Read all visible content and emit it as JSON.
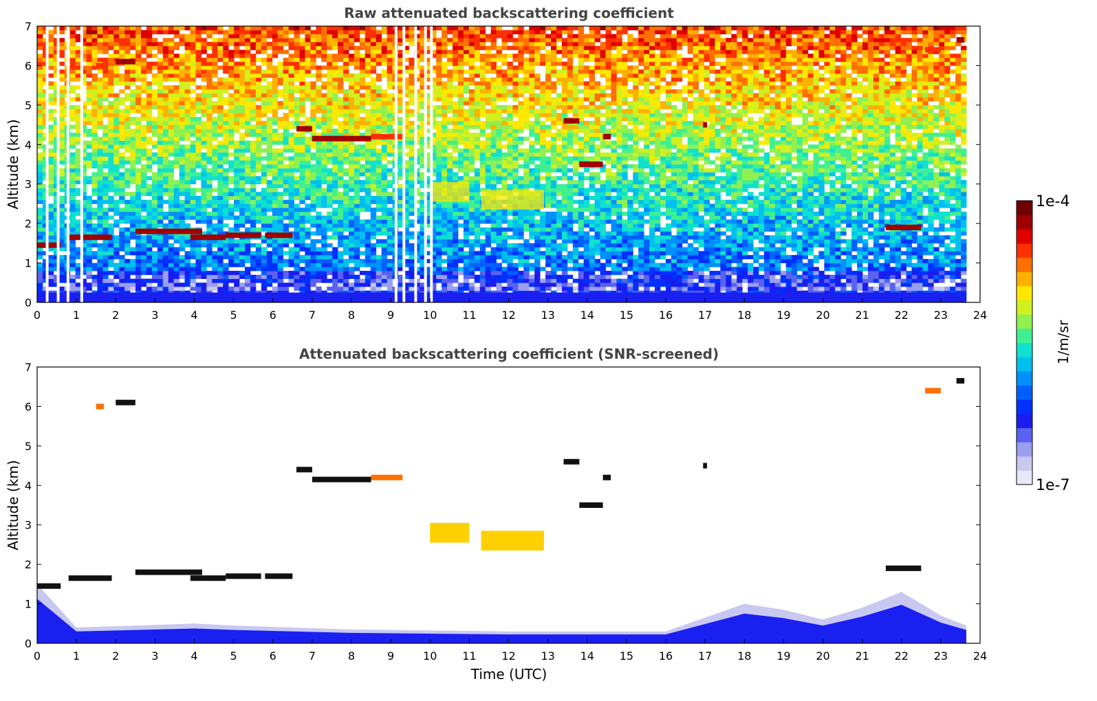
{
  "colorbar": {
    "label": "1/m/sr",
    "max_label": "1e-4",
    "min_label": "1e-7",
    "range": [
      1e-07,
      0.0001
    ],
    "scale": "log",
    "colormap": [
      "#e8e8f8",
      "#c8c8f0",
      "#9a9ef0",
      "#5a62f0",
      "#1a1cf0",
      "#0030ff",
      "#0060ff",
      "#0090ff",
      "#00c0f0",
      "#10e0d0",
      "#40f090",
      "#90f050",
      "#d0f020",
      "#ffe800",
      "#ffb000",
      "#ff7000",
      "#ff3000",
      "#e00000",
      "#a00000",
      "#700000"
    ]
  },
  "chart_data": [
    {
      "type": "heatmap",
      "title": "Raw attenuated backscattering coefficient",
      "xlabel": "",
      "ylabel": "Altitude (km)",
      "xlim": [
        0,
        24
      ],
      "ylim": [
        0,
        7
      ],
      "xticks": [
        "0",
        "1",
        "2",
        "3",
        "4",
        "5",
        "6",
        "7",
        "8",
        "9",
        "10",
        "11",
        "12",
        "13",
        "14",
        "15",
        "16",
        "17",
        "18",
        "19",
        "20",
        "21",
        "22",
        "23",
        "24"
      ],
      "yticks": [
        "0",
        "1",
        "2",
        "3",
        "4",
        "5",
        "6",
        "7"
      ],
      "data_end_hour": 23.65,
      "background_noise": "altitude-increasing (blue near ground to yellow/red aloft)",
      "cloud_layers": [
        {
          "t_start": 0.0,
          "t_end": 0.6,
          "altitude": 1.45,
          "intensity": "high"
        },
        {
          "t_start": 0.8,
          "t_end": 1.9,
          "altitude": 1.65,
          "intensity": "high"
        },
        {
          "t_start": 1.5,
          "t_end": 1.7,
          "altitude": 6.0,
          "intensity": "medium"
        },
        {
          "t_start": 2.0,
          "t_end": 2.5,
          "altitude": 6.1,
          "intensity": "high"
        },
        {
          "t_start": 2.5,
          "t_end": 4.2,
          "altitude": 1.8,
          "intensity": "high"
        },
        {
          "t_start": 3.9,
          "t_end": 4.8,
          "altitude": 1.65,
          "intensity": "high"
        },
        {
          "t_start": 4.8,
          "t_end": 5.7,
          "altitude": 1.7,
          "intensity": "high"
        },
        {
          "t_start": 5.8,
          "t_end": 6.5,
          "altitude": 1.7,
          "intensity": "high"
        },
        {
          "t_start": 6.6,
          "t_end": 7.0,
          "altitude": 4.4,
          "intensity": "high"
        },
        {
          "t_start": 7.0,
          "t_end": 8.5,
          "altitude": 4.15,
          "intensity": "high"
        },
        {
          "t_start": 8.5,
          "t_end": 9.3,
          "altitude": 4.2,
          "intensity": "medium"
        },
        {
          "t_start": 10.0,
          "t_end": 11.0,
          "altitude": 2.8,
          "intensity": "low"
        },
        {
          "t_start": 11.3,
          "t_end": 12.9,
          "altitude": 2.6,
          "intensity": "low"
        },
        {
          "t_start": 13.4,
          "t_end": 13.8,
          "altitude": 4.6,
          "intensity": "high"
        },
        {
          "t_start": 14.4,
          "t_end": 14.6,
          "altitude": 4.2,
          "intensity": "high"
        },
        {
          "t_start": 13.8,
          "t_end": 14.4,
          "altitude": 3.5,
          "intensity": "high"
        },
        {
          "t_start": 16.95,
          "t_end": 17.05,
          "altitude": 4.5,
          "intensity": "high"
        },
        {
          "t_start": 21.6,
          "t_end": 22.5,
          "altitude": 1.9,
          "intensity": "high"
        },
        {
          "t_start": 22.6,
          "t_end": 23.0,
          "altitude": 6.4,
          "intensity": "medium"
        },
        {
          "t_start": 23.4,
          "t_end": 23.6,
          "altitude": 6.65,
          "intensity": "high"
        }
      ]
    },
    {
      "type": "heatmap",
      "title": "Attenuated backscattering coefficient (SNR-screened)",
      "xlabel": "Time (UTC)",
      "ylabel": "Altitude (km)",
      "xlim": [
        0,
        24
      ],
      "ylim": [
        0,
        7
      ],
      "xticks": [
        "0",
        "1",
        "2",
        "3",
        "4",
        "5",
        "6",
        "7",
        "8",
        "9",
        "10",
        "11",
        "12",
        "13",
        "14",
        "15",
        "16",
        "17",
        "18",
        "19",
        "20",
        "21",
        "22",
        "23",
        "24"
      ],
      "yticks": [
        "0",
        "1",
        "2",
        "3",
        "4",
        "5",
        "6",
        "7"
      ],
      "data_end_hour": 23.65,
      "boundary_layer": [
        {
          "t": 0,
          "top": 1.5
        },
        {
          "t": 1,
          "top": 0.4
        },
        {
          "t": 4,
          "top": 0.5
        },
        {
          "t": 5,
          "top": 0.45
        },
        {
          "t": 8,
          "top": 0.35
        },
        {
          "t": 12,
          "top": 0.3
        },
        {
          "t": 16,
          "top": 0.3
        },
        {
          "t": 17,
          "top": 0.65
        },
        {
          "t": 18,
          "top": 1.0
        },
        {
          "t": 19,
          "top": 0.85
        },
        {
          "t": 20,
          "top": 0.6
        },
        {
          "t": 21,
          "top": 0.9
        },
        {
          "t": 22,
          "top": 1.3
        },
        {
          "t": 23,
          "top": 0.7
        },
        {
          "t": 23.65,
          "top": 0.45
        }
      ]
    }
  ]
}
